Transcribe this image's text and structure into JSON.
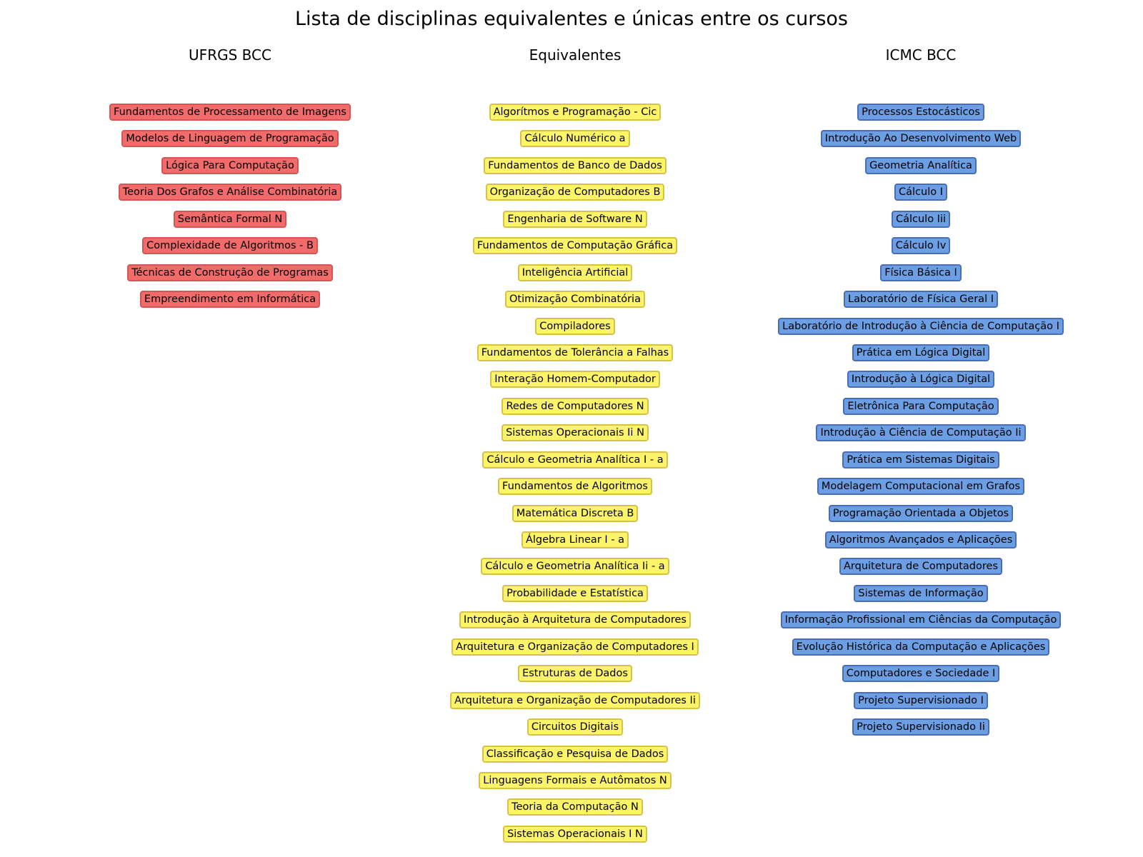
{
  "title": "Lista de disciplinas equivalentes e únicas entre os cursos",
  "colors": {
    "left_fill": "#f26b6b",
    "left_border": "#d45555",
    "mid_fill": "#fdf46a",
    "mid_border": "#d6c14a",
    "right_fill": "#6b9ee3",
    "right_border": "#4a6db5"
  },
  "columns": [
    {
      "header": "UFRGS BCC",
      "items": [
        "Fundamentos de Processamento de Imagens",
        "Modelos de Linguagem de Programação",
        "Lógica Para Computação",
        "Teoria Dos Grafos e Análise Combinatória",
        "Semântica Formal N",
        "Complexidade de Algoritmos - B",
        "Técnicas de Construção de Programas",
        "Empreendimento em Informática"
      ]
    },
    {
      "header": "Equivalentes",
      "items": [
        "Algorítmos e Programação - Cic",
        "Cálculo Numérico a",
        "Fundamentos de Banco de Dados",
        "Organização de Computadores B",
        "Engenharia de Software N",
        "Fundamentos de Computação Gráfica",
        "Inteligência Artificial",
        "Otimização Combinatória",
        "Compiladores",
        "Fundamentos de Tolerância a Falhas",
        "Interação Homem-Computador",
        "Redes de Computadores N",
        "Sistemas Operacionais Ii N",
        "Cálculo e Geometria Analítica I - a",
        "Fundamentos de Algoritmos",
        "Matemática Discreta B",
        "Álgebra Linear I - a",
        "Cálculo e Geometria Analítica Ii - a",
        "Probabilidade e Estatística",
        "Introdução à Arquitetura de Computadores",
        "Arquitetura e Organização de Computadores I",
        "Estruturas de Dados",
        "Arquitetura e Organização de Computadores Ii",
        "Circuitos Digitais",
        "Classificação e Pesquisa de Dados",
        "Linguagens Formais e Autômatos N",
        "Teoria da Computação N",
        "Sistemas Operacionais I N"
      ]
    },
    {
      "header": "ICMC BCC",
      "items": [
        "Processos Estocásticos",
        "Introdução Ao Desenvolvimento Web",
        "Geometria Analítica",
        "Cálculo I",
        "Cálculo Iii",
        "Cálculo Iv",
        "Física Básica I",
        "Laboratório de Física Geral I",
        "Laboratório de Introdução à Ciência de Computação I",
        "Prática em Lógica Digital",
        "Introdução à Lógica Digital",
        "Eletrônica Para Computação",
        "Introdução à Ciência de Computação Ii",
        "Prática em Sistemas Digitais",
        "Modelagem Computacional em Grafos",
        "Programação Orientada a Objetos",
        "Algoritmos Avançados e Aplicações",
        "Arquitetura de Computadores",
        "Sistemas de Informação",
        "Informação Profissional em Ciências da Computação",
        "Evolução Histórica da Computação e Aplicações",
        "Computadores e Sociedade I",
        "Projeto Supervisionado I",
        "Projeto Supervisionado Ii"
      ]
    }
  ]
}
